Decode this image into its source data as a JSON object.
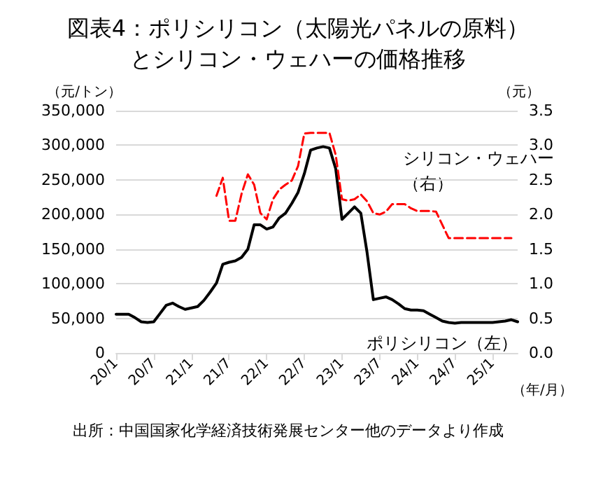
{
  "chart_data": {
    "type": "line",
    "title": "図表4：ポリシリコン（太陽光パネルの原料）とシリコン・ウェハーの価格推移",
    "ylabel": "（元/トン）",
    "y2label": "（元）",
    "xlabel": "（年/月）",
    "annotations": [
      "出所：中国国家化学経済技術発展センター他のデータより作成"
    ],
    "categories": [
      "20/1",
      null,
      null,
      null,
      null,
      null,
      "20/7",
      null,
      null,
      null,
      null,
      null,
      "21/1",
      null,
      null,
      null,
      null,
      null,
      "21/7",
      null,
      null,
      null,
      null,
      null,
      "22/1",
      null,
      null,
      null,
      null,
      null,
      "22/7",
      null,
      null,
      null,
      null,
      null,
      "23/1",
      null,
      null,
      null,
      null,
      null,
      "23/7",
      null,
      null,
      null,
      null,
      null,
      "24/1",
      null,
      null,
      null,
      null,
      null,
      "24/7",
      null,
      null,
      null,
      null,
      null,
      "25/1",
      null,
      null,
      null,
      null
    ],
    "series": [
      {
        "name": "ポリシリコン（左）",
        "color": "#000000",
        "line_style": "solid",
        "values": [
          56000,
          56000,
          56000,
          51000,
          45000,
          44000,
          45000,
          57000,
          69000,
          72000,
          67000,
          63000,
          65000,
          67000,
          76000,
          88000,
          101000,
          128000,
          131000,
          133000,
          138000,
          150000,
          185000,
          185000,
          179000,
          182000,
          195000,
          202000,
          216000,
          232000,
          259000,
          293000,
          296000,
          298000,
          296000,
          266000,
          193000,
          202000,
          211000,
          202000,
          145000,
          77000,
          79000,
          81000,
          77000,
          71000,
          64000,
          62000,
          62000,
          61000,
          56000,
          51000,
          46000,
          44000,
          43000,
          44000,
          44000,
          44000,
          44000,
          44000,
          44000,
          45000,
          46000,
          48000,
          45000
        ]
      },
      {
        "name": "シリコン・ウェハー（右）",
        "color": "#ff0000",
        "line_style": "dashed",
        "axis": "y2",
        "values": [
          null,
          null,
          null,
          null,
          null,
          null,
          null,
          null,
          null,
          null,
          null,
          null,
          null,
          null,
          null,
          null,
          2.27,
          2.53,
          1.91,
          1.91,
          2.3,
          2.58,
          2.43,
          2.02,
          1.93,
          2.22,
          2.36,
          2.43,
          2.49,
          2.7,
          3.17,
          3.18,
          3.18,
          3.18,
          3.18,
          2.86,
          2.22,
          2.2,
          2.22,
          2.29,
          2.19,
          2.02,
          2.0,
          2.04,
          2.15,
          2.15,
          2.15,
          2.09,
          2.05,
          2.05,
          2.05,
          2.04,
          1.85,
          1.66,
          1.66,
          1.66,
          1.66,
          1.66,
          1.66,
          1.66,
          1.66,
          1.66,
          1.66,
          1.66,
          null
        ]
      }
    ],
    "ylim": [
      0,
      350000
    ],
    "yticks": [
      {
        "value": 0,
        "label": "0"
      },
      {
        "value": 50000,
        "label": "50,000"
      },
      {
        "value": 100000,
        "label": "100,000"
      },
      {
        "value": 150000,
        "label": "150,000"
      },
      {
        "value": 200000,
        "label": "200,000"
      },
      {
        "value": 250000,
        "label": "250,000"
      },
      {
        "value": 300000,
        "label": "300,000"
      },
      {
        "value": 350000,
        "label": "350,000"
      }
    ],
    "y2lim": [
      0,
      3.5
    ],
    "y2ticks": [
      {
        "value": 0,
        "label": "0.0"
      },
      {
        "value": 0.5,
        "label": "0.5"
      },
      {
        "value": 1,
        "label": "1.0"
      },
      {
        "value": 1.5,
        "label": "1.5"
      },
      {
        "value": 2,
        "label": "2.0"
      },
      {
        "value": 2.5,
        "label": "2.5"
      },
      {
        "value": 3,
        "label": "3.0"
      },
      {
        "value": 3.5,
        "label": "3.5"
      }
    ],
    "grid": "y",
    "legend": false,
    "marker": "none"
  }
}
